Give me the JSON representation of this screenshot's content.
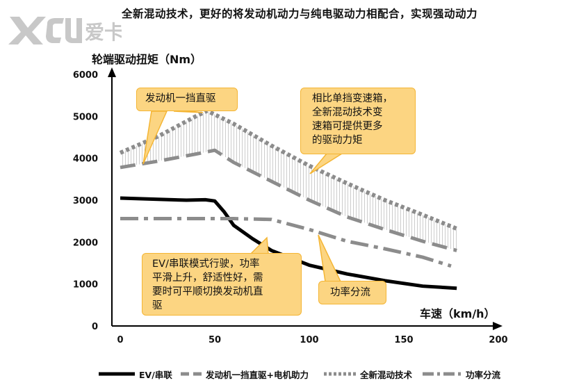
{
  "page": {
    "title": "全新混动技术，更好的将发动机动力与纯电驱动力相配合，实现强动动力",
    "logo_text": "爱卡"
  },
  "colors": {
    "ev_line": "#000000",
    "direct_drive_line": "#8c8c8c",
    "hybrid_dots": "#8c8c8c",
    "power_split_line": "#8c8c8c",
    "callout_fill": "#fcd582",
    "callout_border": "#f4b534",
    "hatch": "#8c8c8c"
  },
  "chart_data": {
    "type": "line",
    "xlabel": "车速（km/h）",
    "ylabel": "轮端驱动扭矩（Nm）",
    "xlim": [
      0,
      200
    ],
    "ylim": [
      0,
      6000
    ],
    "x_ticks": [
      "0",
      "50",
      "100",
      "150",
      "200"
    ],
    "y_ticks": [
      "0",
      "1000",
      "2000",
      "3000",
      "4000",
      "5000",
      "6000"
    ],
    "grid": false,
    "legend_position": "bottom",
    "series": [
      {
        "name": "EV/串联",
        "style": "solid",
        "points": [
          [
            0,
            3050
          ],
          [
            20,
            3020
          ],
          [
            35,
            3000
          ],
          [
            45,
            3010
          ],
          [
            50,
            2980
          ],
          [
            55,
            2720
          ],
          [
            60,
            2400
          ],
          [
            70,
            2080
          ],
          [
            80,
            1800
          ],
          [
            100,
            1450
          ],
          [
            120,
            1240
          ],
          [
            140,
            1080
          ],
          [
            160,
            950
          ],
          [
            178,
            900
          ]
        ]
      },
      {
        "name": "发动机一挡直驱+电机助力",
        "style": "dashed",
        "points": [
          [
            0,
            3780
          ],
          [
            20,
            3930
          ],
          [
            40,
            4100
          ],
          [
            50,
            4190
          ],
          [
            60,
            3900
          ],
          [
            80,
            3450
          ],
          [
            100,
            3000
          ],
          [
            120,
            2600
          ],
          [
            140,
            2300
          ],
          [
            160,
            2020
          ],
          [
            178,
            1800
          ]
        ]
      },
      {
        "name": "全新混动技术",
        "style": "dotted",
        "points": [
          [
            0,
            4130
          ],
          [
            20,
            4520
          ],
          [
            40,
            5000
          ],
          [
            46,
            5130
          ],
          [
            60,
            4820
          ],
          [
            80,
            4300
          ],
          [
            100,
            3820
          ],
          [
            120,
            3400
          ],
          [
            140,
            3000
          ],
          [
            160,
            2650
          ],
          [
            178,
            2320
          ]
        ]
      },
      {
        "name": "功率分流",
        "style": "dash-dot",
        "points": [
          [
            0,
            2560
          ],
          [
            60,
            2560
          ],
          [
            80,
            2540
          ],
          [
            100,
            2300
          ],
          [
            120,
            2020
          ],
          [
            140,
            1840
          ],
          [
            160,
            1640
          ],
          [
            175,
            1430
          ]
        ]
      }
    ],
    "annotations": [
      "发动机一挡直驱",
      "相比单挡变速箱，全新混动技术变速箱可提供更多的驱动力矩",
      "EV/串联模式行驶，功率平滑上升，舒适性好，需要时可平顺切换发动机直驱",
      "功率分流"
    ]
  },
  "callouts": {
    "direct_drive": {
      "line1": "发动机一挡直驱"
    },
    "more_torque": {
      "line1": "相比单挡变速箱，",
      "line2": "全新混动技术变",
      "line3": "速箱可提供更多",
      "line4": "的驱动力矩"
    },
    "ev_mode": {
      "line1": "EV/串联模式行驶，功率",
      "line2": "平滑上升，舒适性好，需",
      "line3": "要时可平顺切换发动机直",
      "line4": "驱"
    },
    "power_split": {
      "line1": "功率分流"
    }
  },
  "legend": [
    {
      "label": "EV/串联",
      "style": "solid"
    },
    {
      "label": "发动机一挡直驱+电机助力",
      "style": "dashed"
    },
    {
      "label": "全新混动技术",
      "style": "dotted"
    },
    {
      "label": "功率分流",
      "style": "dash-dot"
    }
  ]
}
